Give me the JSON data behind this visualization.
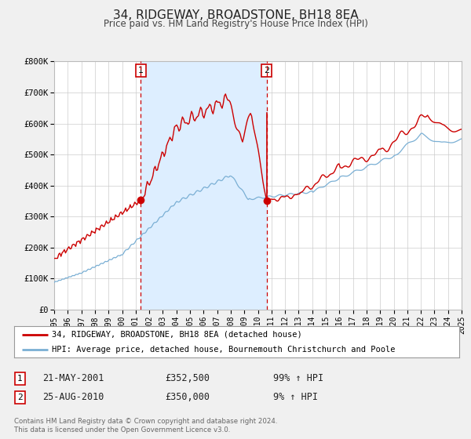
{
  "title": "34, RIDGEWAY, BROADSTONE, BH18 8EA",
  "subtitle": "Price paid vs. HM Land Registry's House Price Index (HPI)",
  "ylim": [
    0,
    800000
  ],
  "ytick_labels": [
    "£0",
    "£100K",
    "£200K",
    "£300K",
    "£400K",
    "£500K",
    "£600K",
    "£700K",
    "£800K"
  ],
  "ytick_values": [
    0,
    100000,
    200000,
    300000,
    400000,
    500000,
    600000,
    700000,
    800000
  ],
  "property_color": "#cc0000",
  "hpi_color": "#7aafd4",
  "background_color": "#f0f0f0",
  "plot_bg_color": "#ffffff",
  "grid_color": "#cccccc",
  "shade_color": "#ddeeff",
  "marker_color": "#cc0000",
  "dashed_line_color": "#cc0000",
  "legend_label_property": "34, RIDGEWAY, BROADSTONE, BH18 8EA (detached house)",
  "legend_label_hpi": "HPI: Average price, detached house, Bournemouth Christchurch and Poole",
  "sale1_date": "21-MAY-2001",
  "sale1_price": "£352,500",
  "sale1_pct": "99% ↑ HPI",
  "sale2_date": "25-AUG-2010",
  "sale2_price": "£350,000",
  "sale2_pct": "9% ↑ HPI",
  "footer1": "Contains HM Land Registry data © Crown copyright and database right 2024.",
  "footer2": "This data is licensed under the Open Government Licence v3.0.",
  "sale1_year": 2001.38,
  "sale2_year": 2010.65,
  "sale1_price_val": 352500,
  "sale2_price_val": 350000
}
